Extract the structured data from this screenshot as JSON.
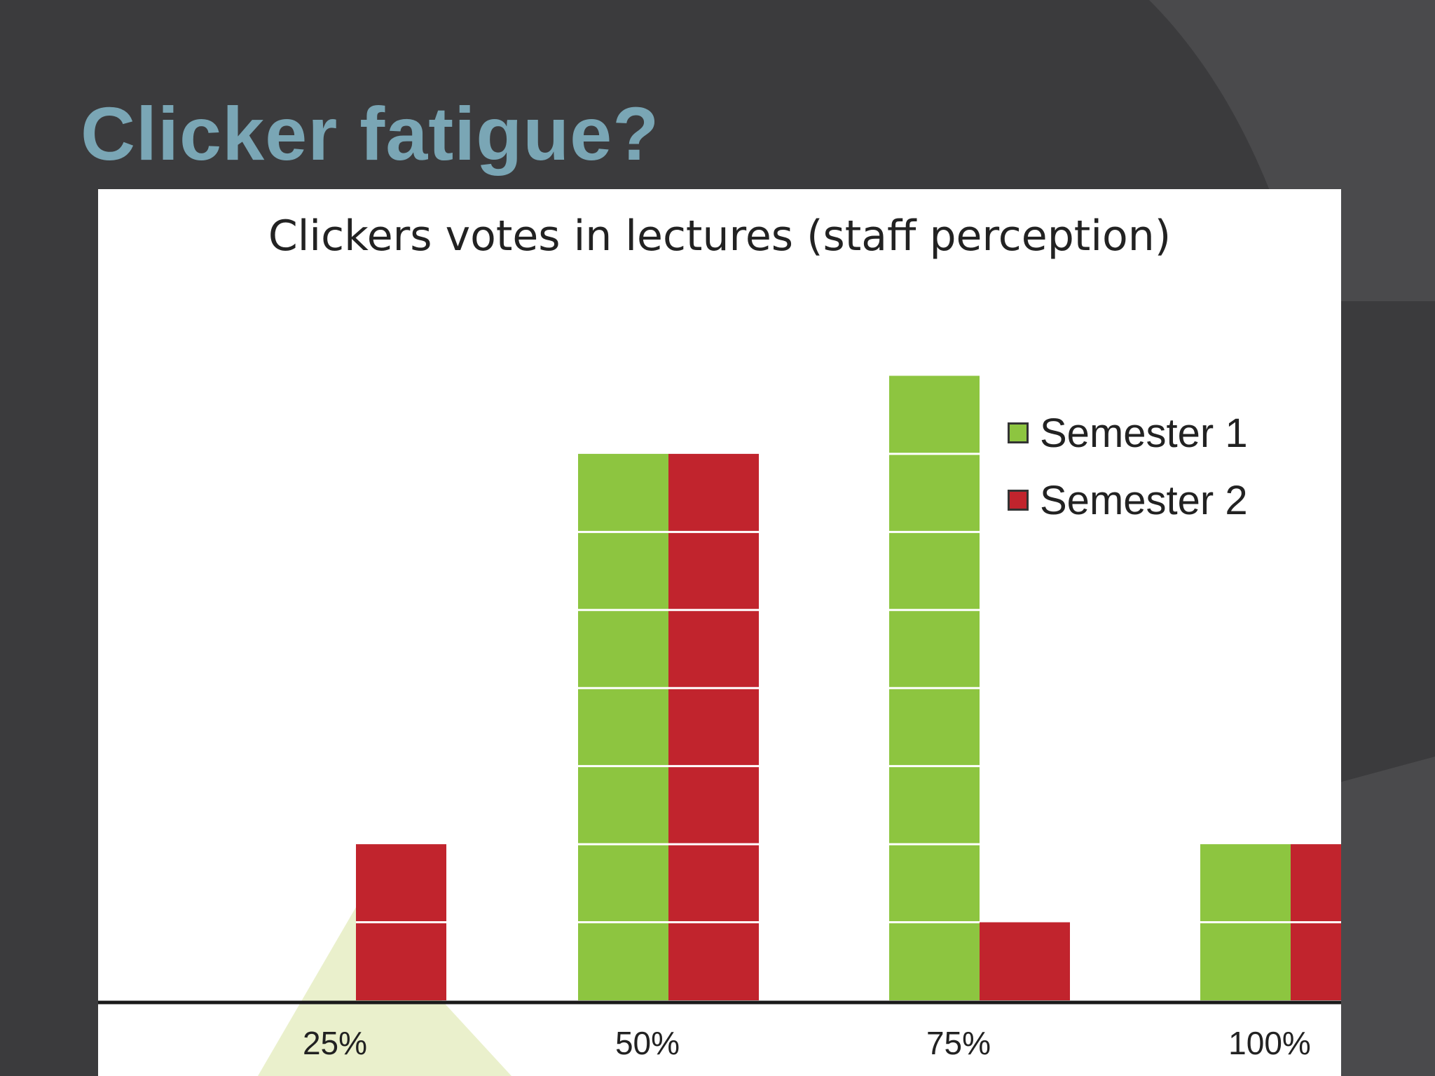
{
  "slide": {
    "title": "Clicker fatigue?"
  },
  "colors": {
    "background": "#3b3b3d",
    "title": "#7aa6b5",
    "semester1": "#8dc540",
    "semester2": "#c1242d"
  },
  "chart_data": {
    "type": "bar",
    "title": "Clickers votes in lectures (staff perception)",
    "xlabel": "",
    "ylabel": "",
    "categories": [
      "25%",
      "50%",
      "75%",
      "100%"
    ],
    "series": [
      {
        "name": "Semester  1",
        "values": [
          0,
          7,
          8,
          2
        ],
        "color": "#8dc540"
      },
      {
        "name": "Semester 2",
        "values": [
          2,
          7,
          1,
          2
        ],
        "color": "#c1242d"
      }
    ],
    "ylim": [
      0,
      9
    ],
    "unit_segments": true,
    "grid": false,
    "legend_position": "right"
  }
}
